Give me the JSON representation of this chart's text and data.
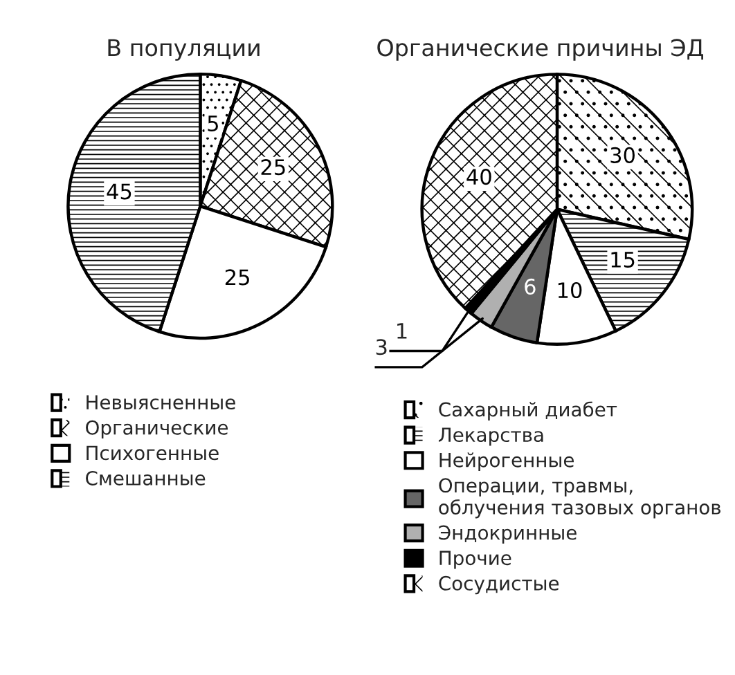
{
  "chart_data": [
    {
      "type": "pie",
      "title": "В популяции",
      "categories": [
        "Невыясненные",
        "Органические",
        "Психогенные",
        "Смешанные"
      ],
      "values": [
        5,
        25,
        25,
        45
      ],
      "colors": [
        "#ffffff",
        "#ffffff",
        "#ffffff",
        "#ffffff"
      ],
      "data_labels": true,
      "legend": "bottom"
    },
    {
      "type": "pie",
      "title": "Органические причины ЭД",
      "categories": [
        "Сахарный диабет",
        "Лекарства",
        "Нейрогенные",
        "Операции, травмы,\nоблучения тазовых органов",
        "Эндокринные",
        "Прочие",
        "Сосудистые"
      ],
      "values": [
        30,
        15,
        10,
        6,
        3,
        1,
        40
      ],
      "colors": [
        "#ffffff",
        "#ffffff",
        "#ffffff",
        "#666666",
        "#b0b0b0",
        "#000000",
        "#ffffff"
      ],
      "data_labels": true,
      "legend": "bottom"
    }
  ]
}
